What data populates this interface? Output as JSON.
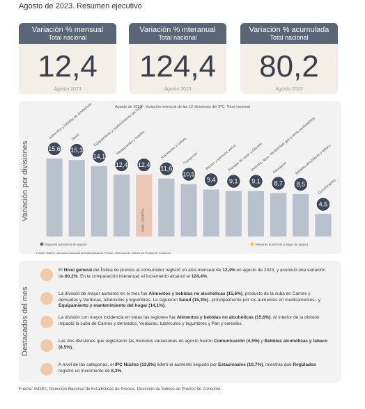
{
  "header": {
    "title": "Agosto de 2023. Resumen ejecutivo"
  },
  "cards": [
    {
      "title": "Variación % mensual",
      "subtitle": "Total nacional",
      "value": "12,4",
      "period": "Agosto 2023"
    },
    {
      "title": "Variación % interanual",
      "subtitle": "Total nacional",
      "value": "124,4",
      "period": "Agosto 2023"
    },
    {
      "title": "Variación % acumulada",
      "subtitle": "Total nacional",
      "value": "80,2",
      "period": "Agosto 2023"
    }
  ],
  "chart_data": {
    "type": "bar",
    "title": "Agosto de 2023 - Variación mensual de las 12 divisiones del IPC. Total nacional",
    "side_label": "Variación por divisiones",
    "categories": [
      "Alimentos y bebidas no alcohólicas",
      "Salud",
      "Equipamiento y mantenimiento del hogar",
      "Restaurantes y hoteles",
      "NIVEL GENERAL",
      "Recreación y cultura",
      "Transporte",
      "Bienes y servicios varios",
      "Prendas de vestir y calzado",
      "Vivienda, agua, electricidad, gas y otros combustibles",
      "Educación",
      "Bebidas alcohólicas y tabaco",
      "Comunicación"
    ],
    "values": [
      15.6,
      15.3,
      14.1,
      12.4,
      12.4,
      11.6,
      10.5,
      9.4,
      9.1,
      9.1,
      8.7,
      8.5,
      4.5
    ],
    "value_labels": [
      "15,6",
      "15,3",
      "14,1",
      "12,4",
      "12,4",
      "11,6",
      "10,5",
      "9,4",
      "9,1",
      "9,1",
      "8,7",
      "8,5",
      "4,5"
    ],
    "colors": [
      "#b9c1cd",
      "#b9c1cd",
      "#b9c1cd",
      "#b9c1cd",
      "#e9c7b2",
      "#b9c1cd",
      "#b9c1cd",
      "#b9c1cd",
      "#b9c1cd",
      "#b9c1cd",
      "#b9c1cd",
      "#b9c1cd",
      "#b9c1cd"
    ],
    "legend": [
      {
        "label": "Mayores aumentos en agosto",
        "color": "#5a6678"
      },
      {
        "label": "Menores aumentos o bajas de agosto",
        "color": "#f2c14e"
      }
    ],
    "source": "Fuente: INDEC, Dirección Nacional de Estadísticas de Precios. Dirección de Índices de Precios de Consumo."
  },
  "highlights": {
    "side_label": "Destacados del mes",
    "items": [
      [
        {
          "text": "El ",
          "bold": false
        },
        {
          "text": "Nivel general",
          "bold": true
        },
        {
          "text": " del Índice de precios al consumidor registró un alza mensual de ",
          "bold": false
        },
        {
          "text": "12,4%",
          "bold": true
        },
        {
          "text": " en agosto de 2023, y acumuló una variación de ",
          "bold": false
        },
        {
          "text": "80,2%",
          "bold": true
        },
        {
          "text": ". En la comparación interanual, el incremento alcanzó el ",
          "bold": false
        },
        {
          "text": "124,4%",
          "bold": true
        },
        {
          "text": ".",
          "bold": false
        }
      ],
      [
        {
          "text": "La división de mayor aumento en el mes fue ",
          "bold": false
        },
        {
          "text": "Alimentos y bebidas no alcohólicas (15,6%)",
          "bold": true
        },
        {
          "text": ", producto de la suba en Carnes y derivados y Verduras, tubérculos y legumbres. Le siguieron ",
          "bold": false
        },
        {
          "text": "Salud (15,3%)",
          "bold": true
        },
        {
          "text": " –principalmente por los aumentos en medicamentos– y ",
          "bold": false
        },
        {
          "text": "Equipamiento y mantenimiento del hogar (14,1%).",
          "bold": true
        }
      ],
      [
        {
          "text": "La división con mayor incidencia en todas las regiones fue ",
          "bold": false
        },
        {
          "text": "Alimentos y bebidas no alcohólicas (15,6%)",
          "bold": true
        },
        {
          "text": ". Al interior de la división impactó la suba de Carnes y derivados, Verduras, tubérculos y legumbres y Pan y cereales.",
          "bold": false
        }
      ],
      [
        {
          "text": "Las dos divisiones que registraron las menores variaciones en agosto fueron ",
          "bold": false
        },
        {
          "text": "Comunicación (4,5%)",
          "bold": true
        },
        {
          "text": " y ",
          "bold": false
        },
        {
          "text": "Bebidas alcohólicas y tabaco (8,5%).",
          "bold": true
        }
      ],
      [
        {
          "text": "A nivel de las categorías, el ",
          "bold": false
        },
        {
          "text": "IPC Núcleo (13,8%)",
          "bold": true
        },
        {
          "text": " lideró el aumento seguido por ",
          "bold": false
        },
        {
          "text": "Estacionales (10,7%)",
          "bold": true
        },
        {
          "text": ", mientras que ",
          "bold": false
        },
        {
          "text": "Regulados",
          "bold": true
        },
        {
          "text": " registró un incremento de ",
          "bold": false
        },
        {
          "text": "8,3%.",
          "bold": true
        }
      ]
    ]
  },
  "footer": {
    "source": "Fuente: INDEC, Dirección Nacional de Estadísticas de Precios. Dirección de Índices de Precios de Consumo."
  }
}
